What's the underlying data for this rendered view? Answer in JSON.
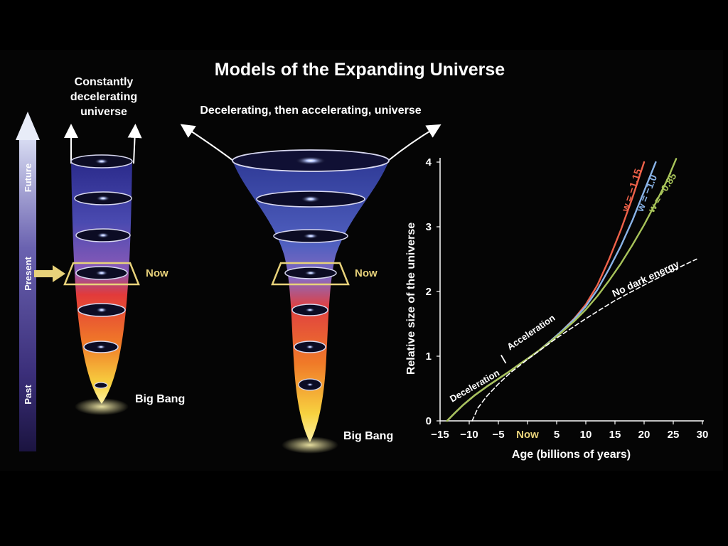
{
  "title": "Models of the Expanding Universe",
  "time_arrow": {
    "future": "Future",
    "present": "Present",
    "past": "Past"
  },
  "left_model": {
    "title_lines": [
      "Constantly",
      "decelerating",
      "universe"
    ],
    "now_label": "Now",
    "big_bang_label": "Big Bang"
  },
  "middle_model": {
    "title": "Decelerating, then accelerating, universe",
    "now_label": "Now",
    "big_bang_label": "Big Bang"
  },
  "colors": {
    "background": "#000000",
    "now_marker": "#e8d27a",
    "arrow_cyan_blue": "#8fa6dc",
    "curve_w_115": "#f0624a",
    "curve_w_10": "#8ab4e8",
    "curve_w_085": "#a8c45a",
    "curve_no_dark_energy": "#ffffff"
  },
  "chart_data": {
    "type": "line",
    "xlabel": "Age (billions of years)",
    "ylabel": "Relative size of the universe",
    "xlim": [
      -15,
      30
    ],
    "ylim": [
      0,
      4
    ],
    "x_ticks": [
      {
        "value": -15,
        "label": "−15"
      },
      {
        "value": -10,
        "label": "−10"
      },
      {
        "value": -5,
        "label": "−5"
      },
      {
        "value": 0,
        "label": "Now"
      },
      {
        "value": 5,
        "label": "5"
      },
      {
        "value": 10,
        "label": "10"
      },
      {
        "value": 15,
        "label": "15"
      },
      {
        "value": 20,
        "label": "20"
      },
      {
        "value": 25,
        "label": "25"
      },
      {
        "value": 30,
        "label": "30"
      }
    ],
    "y_ticks": [
      {
        "value": 0,
        "label": "0"
      },
      {
        "value": 1,
        "label": "1"
      },
      {
        "value": 2,
        "label": "2"
      },
      {
        "value": 3,
        "label": "3"
      },
      {
        "value": 4,
        "label": "4"
      }
    ],
    "annotations": {
      "deceleration": "Deceleration",
      "acceleration": "Acceleration",
      "separator": "|"
    },
    "series": [
      {
        "name": "w = −1.15",
        "color": "#f0624a",
        "dashed": false,
        "x": [
          -13.8,
          -12.5,
          -11,
          -9,
          -7,
          -5,
          -3,
          -1,
          0,
          2,
          4,
          6,
          8,
          10,
          12,
          14,
          16,
          18,
          20
        ],
        "y": [
          0,
          0.12,
          0.25,
          0.4,
          0.53,
          0.65,
          0.77,
          0.9,
          0.96,
          1.09,
          1.24,
          1.4,
          1.58,
          1.8,
          2.1,
          2.5,
          2.95,
          3.45,
          4.0
        ]
      },
      {
        "name": "w = −1.0",
        "color": "#8ab4e8",
        "dashed": false,
        "x": [
          -13.8,
          -12.5,
          -11,
          -9,
          -7,
          -5,
          -3,
          -1,
          0,
          2,
          4,
          6,
          8,
          10,
          12,
          14,
          16,
          18,
          20,
          22
        ],
        "y": [
          0,
          0.12,
          0.25,
          0.4,
          0.53,
          0.65,
          0.77,
          0.9,
          0.96,
          1.09,
          1.24,
          1.4,
          1.57,
          1.77,
          2.03,
          2.35,
          2.7,
          3.1,
          3.55,
          4.0
        ]
      },
      {
        "name": "w = −0.85",
        "color": "#a8c45a",
        "dashed": false,
        "x": [
          -13.8,
          -12.5,
          -11,
          -9,
          -7,
          -5,
          -3,
          -1,
          0,
          2,
          4,
          6,
          8,
          10,
          12,
          14,
          16,
          18,
          20,
          22,
          24,
          25.5
        ],
        "y": [
          0,
          0.12,
          0.25,
          0.4,
          0.53,
          0.65,
          0.77,
          0.9,
          0.96,
          1.09,
          1.23,
          1.38,
          1.54,
          1.72,
          1.93,
          2.17,
          2.43,
          2.72,
          3.03,
          3.37,
          3.73,
          4.05
        ]
      },
      {
        "name": "No dark energy",
        "color": "#ffffff",
        "dashed": true,
        "x": [
          -9.5,
          -8.5,
          -7,
          -5,
          -3,
          -1,
          0,
          5,
          10,
          15,
          20,
          25,
          29
        ],
        "y": [
          0,
          0.2,
          0.38,
          0.57,
          0.74,
          0.88,
          0.95,
          1.28,
          1.58,
          1.86,
          2.1,
          2.33,
          2.5
        ]
      }
    ]
  }
}
